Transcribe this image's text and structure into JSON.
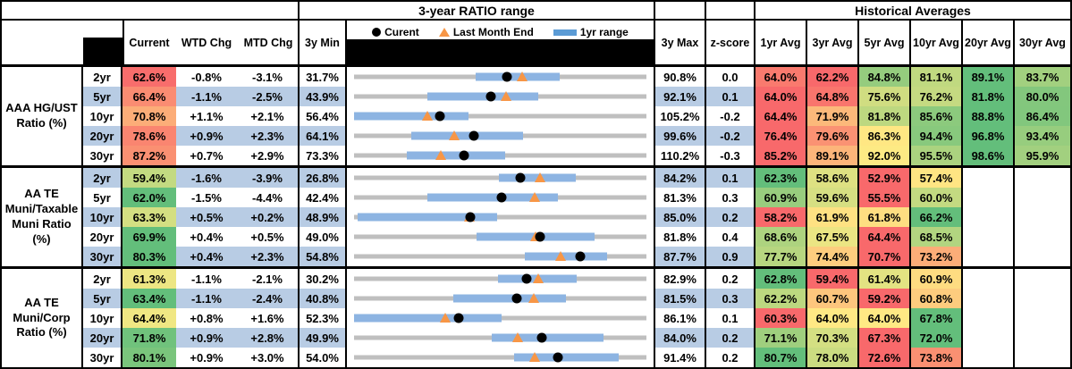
{
  "colors": {
    "scale_red": "#F8696B",
    "scale_yellow": "#FFEB84",
    "scale_green": "#63BE7B",
    "row_stripe_blue": "#B8CCE4",
    "range_track_gray": "#BFBFBF",
    "range_bar_blue": "#8DB4E2",
    "legend_bar_blue": "#5B9BD5",
    "triangle_orange": "#F79646",
    "dot_black": "#000000"
  },
  "chart_data": {
    "type": "table",
    "range_chart_title": "3-year RATIO range",
    "historical_title": "Historical Averages",
    "headers": {
      "current": "Current",
      "wtd": "WTD Chg",
      "mtd": "MTD Chg",
      "min": "3y Min",
      "max": "3y Max",
      "z": "z-score",
      "avgs": [
        "1yr Avg",
        "3yr Avg",
        "5yr Avg",
        "10yr Avg",
        "20yr Avg",
        "30yr Avg"
      ]
    },
    "legend": [
      {
        "marker": "dot",
        "label": "Curent"
      },
      {
        "marker": "triangle",
        "label": "Last Month End"
      },
      {
        "marker": "bar",
        "label": "1yr range"
      }
    ],
    "range_chart_note": "Per-row range chart: gray track spans 3y Min..3y Max, blue bar = 1yr range (estimated), black dot = Current, orange triangle = Last Month End (Current - MTD Chg)",
    "groups": [
      {
        "label": "AAA HG/UST\nRatio (%)",
        "rows": [
          {
            "tenor": "2yr",
            "current": 62.6,
            "wtd": "-0.8%",
            "mtd": "-3.1%",
            "min": 31.7,
            "max": 90.8,
            "z": "0.0",
            "lme": 65.7,
            "bar_lo": 56.3,
            "bar_hi": 73.2,
            "avgs": [
              64.0,
              62.2,
              84.8,
              81.1,
              89.1,
              83.7
            ]
          },
          {
            "tenor": "5yr",
            "current": 66.4,
            "wtd": "-1.1%",
            "mtd": "-2.5%",
            "min": 43.9,
            "max": 92.1,
            "z": "0.1",
            "lme": 68.9,
            "bar_lo": 56.0,
            "bar_hi": 74.3,
            "avgs": [
              64.0,
              64.8,
              75.6,
              76.2,
              81.8,
              80.0
            ]
          },
          {
            "tenor": "10yr",
            "current": 70.8,
            "wtd": "+1.1%",
            "mtd": "+2.1%",
            "min": 56.4,
            "max": 105.2,
            "z": "-0.2",
            "lme": 68.7,
            "bar_lo": 56.4,
            "bar_hi": 75.5,
            "avgs": [
              64.4,
              71.9,
              81.8,
              85.6,
              88.8,
              86.4
            ]
          },
          {
            "tenor": "20yr",
            "current": 78.6,
            "wtd": "+0.9%",
            "mtd": "+2.3%",
            "min": 64.1,
            "max": 99.6,
            "z": "-0.2",
            "lme": 76.3,
            "bar_lo": 71.1,
            "bar_hi": 84.6,
            "avgs": [
              76.4,
              79.6,
              86.3,
              94.4,
              96.8,
              93.4
            ]
          },
          {
            "tenor": "30yr",
            "current": 87.2,
            "wtd": "+0.7%",
            "mtd": "+2.9%",
            "min": 73.3,
            "max": 110.2,
            "z": "-0.3",
            "lme": 84.3,
            "bar_lo": 80.0,
            "bar_hi": 92.4,
            "avgs": [
              85.2,
              89.1,
              92.0,
              95.5,
              98.6,
              95.9
            ]
          }
        ]
      },
      {
        "label": "AA TE\nMuni/Taxable\nMuni Ratio\n(%)",
        "rows": [
          {
            "tenor": "2yr",
            "current": 59.4,
            "wtd": "-1.6%",
            "mtd": "-3.9%",
            "min": 26.8,
            "max": 84.2,
            "z": "0.1",
            "lme": 63.3,
            "bar_lo": 55.2,
            "bar_hi": 70.4,
            "avgs": [
              62.3,
              58.6,
              52.9,
              57.4,
              null,
              null
            ]
          },
          {
            "tenor": "5yr",
            "current": 62.0,
            "wtd": "-1.5%",
            "mtd": "-4.4%",
            "min": 42.4,
            "max": 81.3,
            "z": "0.3",
            "lme": 66.4,
            "bar_lo": 52.1,
            "bar_hi": 69.5,
            "avgs": [
              60.9,
              59.6,
              55.5,
              60.0,
              null,
              null
            ]
          },
          {
            "tenor": "10yr",
            "current": 63.3,
            "wtd": "+0.5%",
            "mtd": "+0.2%",
            "min": 48.9,
            "max": 85.0,
            "z": "0.2",
            "lme": 63.1,
            "bar_lo": 49.3,
            "bar_hi": 66.6,
            "avgs": [
              58.2,
              61.9,
              61.8,
              66.2,
              null,
              null
            ]
          },
          {
            "tenor": "20yr",
            "current": 69.9,
            "wtd": "+0.4%",
            "mtd": "+0.5%",
            "min": 49.0,
            "max": 81.8,
            "z": "0.4",
            "lme": 69.4,
            "bar_lo": 62.7,
            "bar_hi": 76.0,
            "avgs": [
              68.6,
              67.5,
              64.4,
              68.5,
              null,
              null
            ]
          },
          {
            "tenor": "30yr",
            "current": 80.3,
            "wtd": "+0.4%",
            "mtd": "+2.3%",
            "min": 54.8,
            "max": 87.7,
            "z": "0.9",
            "lme": 78.0,
            "bar_lo": 74.0,
            "bar_hi": 83.3,
            "avgs": [
              77.7,
              74.4,
              70.7,
              73.2,
              null,
              null
            ]
          }
        ]
      },
      {
        "label": "AA TE\nMuni/Corp\nRatio (%)",
        "rows": [
          {
            "tenor": "2yr",
            "current": 61.3,
            "wtd": "-1.1%",
            "mtd": "-2.1%",
            "min": 30.2,
            "max": 82.9,
            "z": "0.2",
            "lme": 63.4,
            "bar_lo": 56.2,
            "bar_hi": 70.4,
            "avgs": [
              62.8,
              59.4,
              61.4,
              60.9,
              null,
              null
            ]
          },
          {
            "tenor": "5yr",
            "current": 63.4,
            "wtd": "-1.1%",
            "mtd": "-2.4%",
            "min": 40.8,
            "max": 81.5,
            "z": "0.3",
            "lme": 65.8,
            "bar_lo": 54.6,
            "bar_hi": 70.3,
            "avgs": [
              62.2,
              60.7,
              59.2,
              60.8,
              null,
              null
            ]
          },
          {
            "tenor": "10yr",
            "current": 64.4,
            "wtd": "+0.8%",
            "mtd": "+1.6%",
            "min": 52.3,
            "max": 86.1,
            "z": "0.1",
            "lme": 62.8,
            "bar_lo": 52.3,
            "bar_hi": 69.4,
            "avgs": [
              60.3,
              64.0,
              64.0,
              67.8,
              null,
              null
            ]
          },
          {
            "tenor": "20yr",
            "current": 71.8,
            "wtd": "+0.9%",
            "mtd": "+2.8%",
            "min": 49.9,
            "max": 84.0,
            "z": "0.2",
            "lme": 69.0,
            "bar_lo": 66.0,
            "bar_hi": 79.0,
            "avgs": [
              71.1,
              70.3,
              67.3,
              72.0,
              null,
              null
            ]
          },
          {
            "tenor": "30yr",
            "current": 80.1,
            "wtd": "+0.9%",
            "mtd": "+3.0%",
            "min": 54.0,
            "max": 91.4,
            "z": "0.2",
            "lme": 77.1,
            "bar_lo": 74.5,
            "bar_hi": 87.8,
            "avgs": [
              80.7,
              78.0,
              72.6,
              73.8,
              null,
              null
            ]
          }
        ]
      }
    ]
  }
}
